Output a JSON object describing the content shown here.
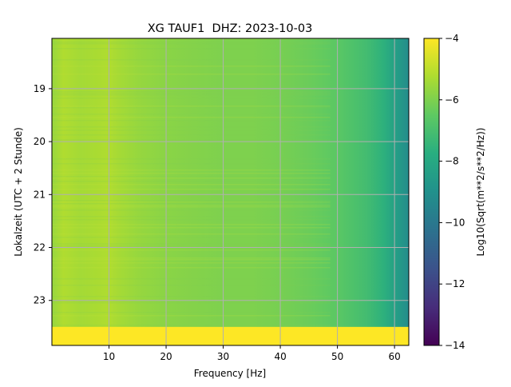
{
  "chart_data": {
    "type": "heatmap",
    "title": "XG TAUF1  DHZ: 2023-10-03",
    "xlabel": "Frequency [Hz]",
    "ylabel": "Lokalzeit (UTC + 2 Stunde)",
    "xlim": [
      0,
      62.5
    ],
    "ylim": [
      23.85,
      18.05
    ],
    "xticks": [
      10,
      20,
      30,
      40,
      50,
      60
    ],
    "xtick_labels": [
      "10",
      "20",
      "30",
      "40",
      "50",
      "60"
    ],
    "yticks": [
      19,
      20,
      21,
      22,
      23
    ],
    "ytick_labels": [
      "19",
      "20",
      "21",
      "22",
      "23"
    ],
    "grid": true,
    "colormap": "viridis",
    "colorbar": {
      "label": "Log10(Sqrt(m**2/s**2/Hz))",
      "range": [
        -14,
        -4
      ],
      "ticks": [
        -4,
        -6,
        -8,
        -10,
        -12,
        -14
      ],
      "tick_labels": [
        "−4",
        "−6",
        "−8",
        "−10",
        "−12",
        "−14"
      ]
    },
    "power_profile": {
      "frequency_hz": [
        0,
        2,
        5,
        8,
        10,
        12,
        15,
        20,
        25,
        30,
        35,
        40,
        45,
        47,
        50,
        52,
        55,
        58,
        60,
        62.5
      ],
      "log10_amplitude": [
        -5.6,
        -5.2,
        -5.4,
        -5.3,
        -5.2,
        -5.4,
        -5.6,
        -5.8,
        -5.9,
        -6.0,
        -6.0,
        -6.1,
        -6.3,
        -6.4,
        -6.6,
        -6.8,
        -7.1,
        -7.6,
        -8.3,
        -9.2
      ]
    },
    "saturated_block": {
      "time_start": 23.5,
      "time_end": 23.85,
      "value": -4
    }
  }
}
